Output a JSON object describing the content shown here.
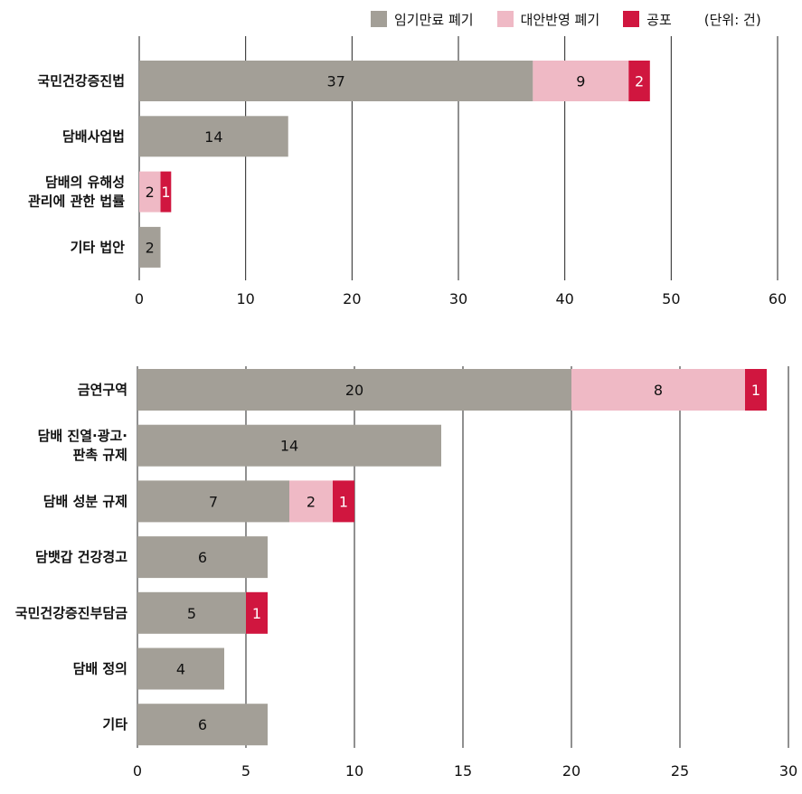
{
  "legend": {
    "items": [
      {
        "label": "임기만료 폐기",
        "color": "#a39f97"
      },
      {
        "label": "대안반영 폐기",
        "color": "#efb9c5"
      },
      {
        "label": "공포",
        "color": "#d0163f"
      }
    ],
    "unit": "(단위: 건)"
  },
  "chart_data": [
    {
      "type": "bar",
      "orientation": "horizontal",
      "stacked": true,
      "categories": [
        [
          "국민건강증진법"
        ],
        [
          "담배사업법"
        ],
        [
          "담배의 유해성",
          "관리에 관한 법률"
        ],
        [
          "기타 법안"
        ]
      ],
      "series": [
        {
          "name": "임기만료 폐기",
          "values": [
            37,
            14,
            0,
            2
          ]
        },
        {
          "name": "대안반영 폐기",
          "values": [
            9,
            0,
            2,
            0
          ]
        },
        {
          "name": "공포",
          "values": [
            2,
            0,
            1,
            0
          ]
        }
      ],
      "xlim": [
        0,
        60
      ],
      "ticks": [
        0,
        10,
        20,
        30,
        40,
        50,
        60
      ],
      "grid": true
    },
    {
      "type": "bar",
      "orientation": "horizontal",
      "stacked": true,
      "categories": [
        [
          "금연구역"
        ],
        [
          "담배 진열·광고·",
          "판촉 규제"
        ],
        [
          "담배 성분 규제"
        ],
        [
          "담뱃갑 건강경고"
        ],
        [
          "국민건강증진부담금"
        ],
        [
          "담배 정의"
        ],
        [
          "기타"
        ]
      ],
      "series": [
        {
          "name": "임기만료 폐기",
          "values": [
            20,
            14,
            7,
            6,
            5,
            4,
            6
          ]
        },
        {
          "name": "대안반영 폐기",
          "values": [
            8,
            0,
            2,
            0,
            0,
            0,
            0
          ]
        },
        {
          "name": "공포",
          "values": [
            1,
            0,
            1,
            0,
            1,
            0,
            0
          ]
        }
      ],
      "xlim": [
        0,
        30
      ],
      "ticks": [
        0,
        5,
        10,
        15,
        20,
        25,
        30
      ],
      "grid": true
    }
  ]
}
